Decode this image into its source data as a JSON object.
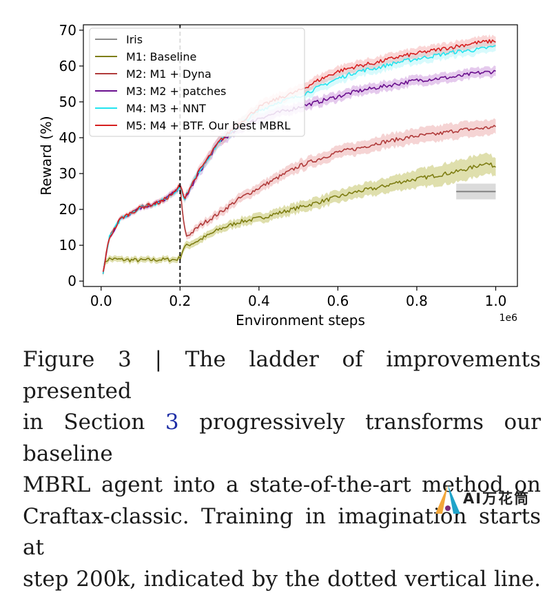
{
  "chart_data": {
    "type": "line",
    "xlabel": "Environment steps",
    "ylabel": "Reward (%)",
    "x_offset_label": "1e6",
    "xlim": [
      -0.045,
      1.055
    ],
    "ylim": [
      -1.5,
      71.5
    ],
    "xticks": [
      0.0,
      0.2,
      0.4,
      0.6,
      0.8,
      1.0
    ],
    "xtick_labels": [
      "0.0",
      "0.2",
      "0.4",
      "0.6",
      "0.8",
      "1.0"
    ],
    "yticks": [
      0,
      10,
      20,
      30,
      40,
      50,
      60,
      70
    ],
    "ytick_labels": [
      "0",
      "10",
      "20",
      "30",
      "40",
      "50",
      "60",
      "70"
    ],
    "grid": false,
    "legend_position": "top-left",
    "annotations": [
      {
        "type": "vertical-dashed-line",
        "x": 0.2
      }
    ],
    "series": [
      {
        "name": "Iris",
        "color": "#8c8c8c",
        "band_color": "#bdbdbd",
        "x": [
          0.9,
          1.0
        ],
        "y": [
          25,
          25
        ],
        "band": [
          2.2,
          2.2
        ]
      },
      {
        "name": "M1: Baseline",
        "color": "#7d7d12",
        "band_color": "#b8b84a",
        "x": [
          0.005,
          0.01,
          0.02,
          0.05,
          0.1,
          0.15,
          0.19,
          0.2,
          0.21,
          0.25,
          0.3,
          0.35,
          0.4,
          0.45,
          0.5,
          0.55,
          0.6,
          0.65,
          0.7,
          0.75,
          0.8,
          0.85,
          0.9,
          0.95,
          0.97,
          1.0
        ],
        "y": [
          2.5,
          5.5,
          6.2,
          6.0,
          5.8,
          6.0,
          6.0,
          6.5,
          9.5,
          11.5,
          14.5,
          16.5,
          17.5,
          19.0,
          20.5,
          22.0,
          23.5,
          25.0,
          26.0,
          27.5,
          28.5,
          29.5,
          30.5,
          32.0,
          33.0,
          32.0
        ],
        "band": [
          0.8,
          0.8,
          0.8,
          0.8,
          0.8,
          0.8,
          0.8,
          0.8,
          1.0,
          1.0,
          1.1,
          1.2,
          1.3,
          1.4,
          1.5,
          1.6,
          1.7,
          1.8,
          2.0,
          2.2,
          2.5,
          2.8,
          3.0,
          3.0,
          3.0,
          2.5
        ]
      },
      {
        "name": "M2: M1 + Dyna",
        "color": "#b03a3a",
        "band_color": "#e9a0a0",
        "x": [
          0.005,
          0.02,
          0.05,
          0.1,
          0.15,
          0.19,
          0.2,
          0.205,
          0.215,
          0.23,
          0.25,
          0.3,
          0.35,
          0.4,
          0.45,
          0.5,
          0.55,
          0.6,
          0.65,
          0.7,
          0.75,
          0.8,
          0.85,
          0.9,
          0.95,
          1.0
        ],
        "y": [
          2.5,
          12.0,
          17.5,
          20.5,
          22.0,
          25.0,
          27.0,
          20.0,
          12.5,
          13.5,
          15.5,
          19.0,
          23.0,
          26.0,
          29.0,
          32.0,
          34.0,
          36.0,
          37.0,
          38.5,
          39.5,
          40.5,
          41.0,
          42.0,
          42.5,
          43.0
        ],
        "band": [
          0.5,
          0.6,
          0.6,
          0.6,
          0.7,
          0.8,
          0.8,
          1.5,
          1.0,
          1.0,
          1.0,
          1.2,
          1.3,
          1.4,
          1.5,
          1.6,
          1.6,
          1.7,
          1.8,
          1.9,
          2.0,
          2.1,
          2.2,
          2.2,
          2.2,
          2.0
        ]
      },
      {
        "name": "M3: M2 + patches",
        "color": "#6a0f8e",
        "band_color": "#c58ad8",
        "x": [
          0.005,
          0.02,
          0.05,
          0.1,
          0.15,
          0.19,
          0.2,
          0.21,
          0.22,
          0.25,
          0.3,
          0.35,
          0.4,
          0.45,
          0.5,
          0.55,
          0.6,
          0.65,
          0.7,
          0.75,
          0.8,
          0.85,
          0.9,
          0.95,
          1.0
        ],
        "y": [
          2.5,
          12.0,
          17.5,
          20.5,
          22.0,
          25.0,
          27.0,
          22.5,
          24.5,
          30.5,
          39.0,
          42.5,
          45.5,
          47.0,
          48.5,
          50.0,
          51.5,
          53.0,
          54.0,
          55.0,
          56.0,
          56.5,
          57.0,
          58.0,
          58.5
        ],
        "band": [
          0.5,
          0.6,
          0.6,
          0.6,
          0.7,
          0.8,
          0.8,
          1.0,
          1.0,
          1.2,
          1.4,
          1.4,
          1.4,
          1.4,
          1.4,
          1.4,
          1.4,
          1.4,
          1.4,
          1.4,
          1.4,
          1.4,
          1.4,
          1.4,
          1.4
        ]
      },
      {
        "name": "M4: M3 + NNT",
        "color": "#22e4ef",
        "band_color": "#a8f4f8",
        "x": [
          0.005,
          0.02,
          0.05,
          0.1,
          0.15,
          0.19,
          0.2,
          0.21,
          0.22,
          0.25,
          0.3,
          0.35,
          0.4,
          0.45,
          0.5,
          0.55,
          0.6,
          0.65,
          0.7,
          0.75,
          0.8,
          0.85,
          0.9,
          0.95,
          1.0
        ],
        "y": [
          2.5,
          12.0,
          17.5,
          20.5,
          22.0,
          25.0,
          27.0,
          22.5,
          25.0,
          31.0,
          39.0,
          43.5,
          47.5,
          50.0,
          51.5,
          54.0,
          56.5,
          58.5,
          59.5,
          61.0,
          62.0,
          63.0,
          64.0,
          64.5,
          65.5
        ],
        "band": [
          0.5,
          0.6,
          0.6,
          0.6,
          0.7,
          0.8,
          0.8,
          1.0,
          1.0,
          1.2,
          1.5,
          1.5,
          1.5,
          1.5,
          1.5,
          1.5,
          1.5,
          1.5,
          1.5,
          1.5,
          1.5,
          1.5,
          1.5,
          1.5,
          1.5
        ]
      },
      {
        "name": "M5: M4 + BTF. Our best MBRL",
        "color": "#d61f1f",
        "band_color": "#f3a4a4",
        "x": [
          0.005,
          0.02,
          0.05,
          0.1,
          0.15,
          0.19,
          0.2,
          0.21,
          0.22,
          0.25,
          0.3,
          0.35,
          0.4,
          0.45,
          0.5,
          0.55,
          0.6,
          0.65,
          0.7,
          0.75,
          0.8,
          0.85,
          0.9,
          0.95,
          1.0
        ],
        "y": [
          2.5,
          12.0,
          17.5,
          20.5,
          22.0,
          25.0,
          27.0,
          23.0,
          25.0,
          31.0,
          39.0,
          44.0,
          48.5,
          51.0,
          53.0,
          56.0,
          58.5,
          60.0,
          61.0,
          62.5,
          63.5,
          64.5,
          65.5,
          66.5,
          67.0
        ],
        "band": [
          0.5,
          0.6,
          0.6,
          0.6,
          0.7,
          0.8,
          0.8,
          1.0,
          1.0,
          1.2,
          1.5,
          1.5,
          1.5,
          1.5,
          1.5,
          1.5,
          1.5,
          1.5,
          1.5,
          1.5,
          1.5,
          1.5,
          1.5,
          1.5,
          1.5
        ]
      }
    ]
  },
  "caption": {
    "line1": "Figure 3 | The ladder of improvements presented",
    "line2_pre": "in Section ",
    "line2_ref": "3",
    "line2_post": " progressively transforms our baseline",
    "line3": "MBRL agent into a state-of-the-art method on",
    "line4": "Craftax-classic. Training in imagination starts at",
    "line5": "step 200k, indicated by the dotted vertical line."
  },
  "watermark": {
    "text": "AI万花筒"
  }
}
